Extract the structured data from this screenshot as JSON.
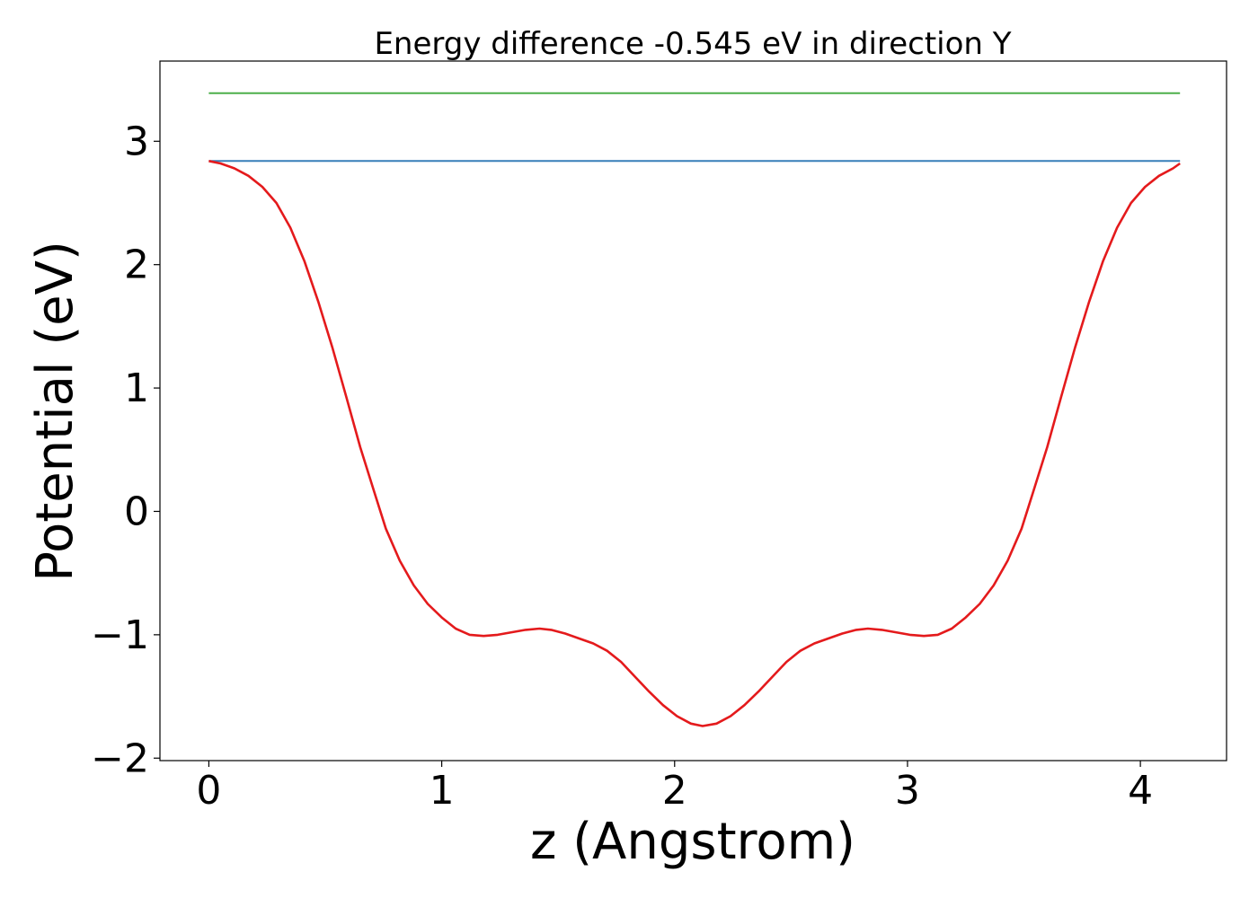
{
  "chart_data": {
    "type": "line",
    "title": "Energy difference -0.545 eV in direction Y",
    "xlabel": "z (Angstrom)",
    "ylabel": "Potential (eV)",
    "xlim": [
      -0.21,
      4.37
    ],
    "ylim": [
      -2.02,
      3.65
    ],
    "xticks": [
      0,
      1,
      2,
      3,
      4
    ],
    "yticks": [
      -2,
      -1,
      0,
      1,
      2,
      3
    ],
    "ytick_labels": [
      "−2",
      "−1",
      "0",
      "1",
      "2",
      "3"
    ],
    "grid": false,
    "series": [
      {
        "color": "#4daf4a",
        "x": [
          0,
          4.17
        ],
        "y": [
          3.39,
          3.39
        ]
      },
      {
        "color": "#377eb8",
        "x": [
          0,
          4.17
        ],
        "y": [
          2.84,
          2.84
        ]
      },
      {
        "color": "#e41a1c",
        "x": [
          0,
          0.05,
          0.11,
          0.17,
          0.23,
          0.29,
          0.35,
          0.41,
          0.47,
          0.53,
          0.59,
          0.65,
          0.71,
          0.76,
          0.82,
          0.88,
          0.94,
          1.0,
          1.06,
          1.12,
          1.18,
          1.24,
          1.3,
          1.36,
          1.42,
          1.47,
          1.53,
          1.59,
          1.65,
          1.71,
          1.77,
          1.83,
          1.89,
          1.95,
          2.01,
          2.07,
          2.12,
          2.18,
          2.24,
          2.3,
          2.36,
          2.42,
          2.48,
          2.54,
          2.6,
          2.66,
          2.72,
          2.78,
          2.83,
          2.89,
          2.95,
          3.01,
          3.07,
          3.13,
          3.19,
          3.25,
          3.31,
          3.37,
          3.43,
          3.49,
          3.54,
          3.6,
          3.66,
          3.72,
          3.78,
          3.84,
          3.9,
          3.96,
          4.02,
          4.08,
          4.14,
          4.17
        ],
        "y": [
          2.84,
          2.82,
          2.78,
          2.72,
          2.63,
          2.5,
          2.3,
          2.03,
          1.7,
          1.33,
          0.93,
          0.52,
          0.16,
          -0.14,
          -0.4,
          -0.6,
          -0.75,
          -0.86,
          -0.95,
          -1.0,
          -1.01,
          -1.0,
          -0.98,
          -0.96,
          -0.95,
          -0.96,
          -0.99,
          -1.03,
          -1.07,
          -1.13,
          -1.22,
          -1.34,
          -1.46,
          -1.57,
          -1.66,
          -1.72,
          -1.74,
          -1.72,
          -1.66,
          -1.57,
          -1.46,
          -1.34,
          -1.22,
          -1.13,
          -1.07,
          -1.03,
          -0.99,
          -0.96,
          -0.95,
          -0.96,
          -0.98,
          -1.0,
          -1.01,
          -1.0,
          -0.95,
          -0.86,
          -0.75,
          -0.6,
          -0.4,
          -0.14,
          0.16,
          0.52,
          0.93,
          1.33,
          1.7,
          2.03,
          2.3,
          2.5,
          2.63,
          2.72,
          2.78,
          2.82
        ]
      }
    ]
  }
}
